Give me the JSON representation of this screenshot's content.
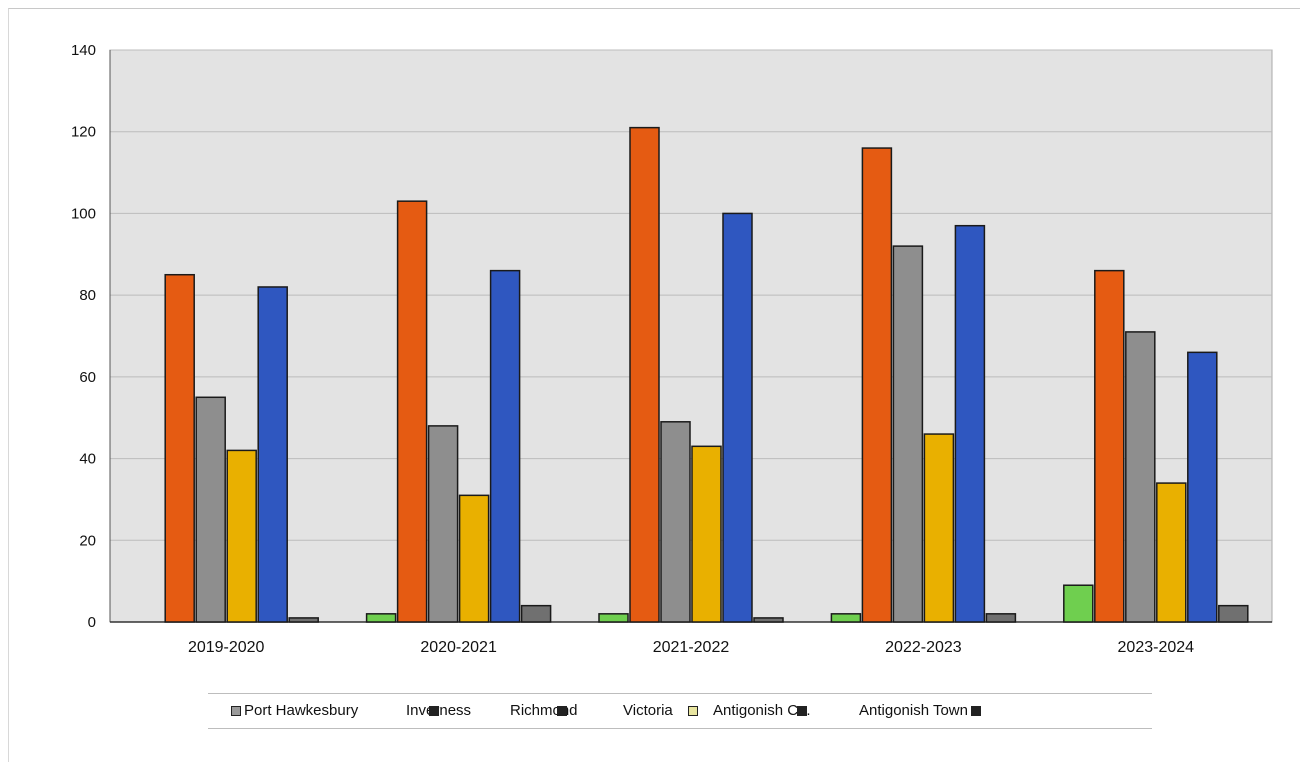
{
  "chart_data": {
    "type": "bar",
    "categories": [
      "2019-2020",
      "2020-2021",
      "2021-2022",
      "2022-2023",
      "2023-2024"
    ],
    "series": [
      {
        "name": "Port Hawkesbury",
        "color": "#6fcf4f",
        "values": [
          0,
          2,
          2,
          2,
          9
        ]
      },
      {
        "name": "Inverness",
        "color": "#e55b12",
        "values": [
          85,
          103,
          121,
          116,
          86
        ]
      },
      {
        "name": "Richmond",
        "color": "#8e8e8e",
        "values": [
          55,
          48,
          49,
          92,
          71
        ]
      },
      {
        "name": "Victoria",
        "color": "#e9b000",
        "values": [
          42,
          31,
          43,
          46,
          34
        ]
      },
      {
        "name": "Antigonish Co.",
        "color": "#2f57c0",
        "values": [
          82,
          86,
          100,
          97,
          66
        ]
      },
      {
        "name": "Antigonish Town",
        "color": "#707070",
        "values": [
          1,
          4,
          1,
          2,
          4
        ]
      }
    ],
    "yticks": [
      0,
      20,
      40,
      60,
      80,
      100,
      120,
      140
    ],
    "ylim": [
      0,
      140
    ],
    "grid": true,
    "legend_position": "bottom"
  },
  "legend_labels": [
    {
      "text": "Port Hawkesbury",
      "swatch": "#9a9a9a"
    },
    {
      "text": "Inverness",
      "swatch": "#222222"
    },
    {
      "text": "Richmond",
      "swatch": "#222222"
    },
    {
      "text": "Victoria",
      "swatch": "#e8e5a0"
    },
    {
      "text": "Antigonish Co.",
      "swatch": "#222222"
    },
    {
      "text": "Antigonish Town",
      "swatch": "#222222"
    }
  ]
}
